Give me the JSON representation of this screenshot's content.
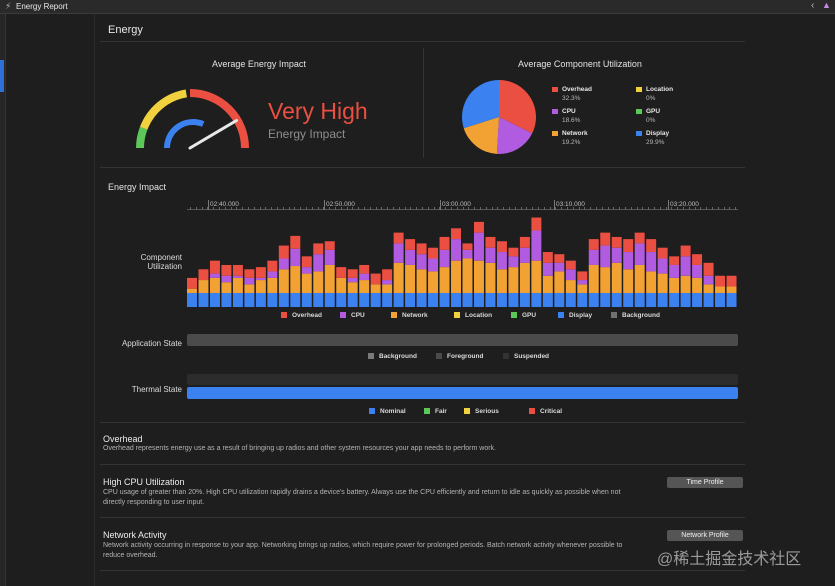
{
  "window": {
    "title": "Energy Report"
  },
  "header": {
    "title": "Energy"
  },
  "gauge": {
    "title": "Average Energy Impact",
    "level": "Very High",
    "subtitle": "Energy Impact",
    "needle_fraction": 0.83
  },
  "utilization": {
    "title": "Average Component Utilization",
    "items": [
      {
        "name": "Overhead",
        "pct": "32.3%",
        "value": 32.3,
        "color": "#ea4f41"
      },
      {
        "name": "Location",
        "pct": "0%",
        "value": 0,
        "color": "#f1d13d"
      },
      {
        "name": "CPU",
        "pct": "18.6%",
        "value": 18.6,
        "color": "#b05be0"
      },
      {
        "name": "GPU",
        "pct": "0%",
        "value": 0,
        "color": "#5cc857"
      },
      {
        "name": "Network",
        "pct": "19.2%",
        "value": 19.2,
        "color": "#f2a233"
      },
      {
        "name": "Display",
        "pct": "29.9%",
        "value": 29.9,
        "color": "#3b82f0"
      }
    ]
  },
  "impact": {
    "title": "Energy Impact",
    "row_label_line1": "Component",
    "row_label_line2": "Utilization",
    "ticks": [
      "02:40.000",
      "02:50.000",
      "03:00.000",
      "03:10.000",
      "03:20.000"
    ],
    "legend": [
      {
        "name": "Overhead",
        "color": "#ea4f41"
      },
      {
        "name": "CPU",
        "color": "#b05be0"
      },
      {
        "name": "Network",
        "color": "#f2a233"
      },
      {
        "name": "Location",
        "color": "#f1d13d"
      },
      {
        "name": "GPU",
        "color": "#5cc857"
      },
      {
        "name": "Display",
        "color": "#3b82f0"
      },
      {
        "name": "Background",
        "color": "#707070"
      }
    ]
  },
  "chart_data": {
    "type": "bar",
    "stacked": true,
    "title": "Energy Impact",
    "ylabel": "Component Utilization",
    "x_ticks": [
      "02:40.000",
      "02:50.000",
      "03:00.000",
      "03:10.000",
      "03:20.000"
    ],
    "ylim": [
      0,
      90
    ],
    "series": [
      {
        "name": "Display",
        "color": "#3b82f0",
        "values": [
          13,
          13,
          13,
          13,
          13,
          13,
          13,
          13,
          13,
          13,
          13,
          13,
          13,
          13,
          13,
          13,
          13,
          13,
          13,
          13,
          13,
          13,
          13,
          13,
          13,
          13,
          13,
          13,
          13,
          13,
          13,
          13,
          13,
          13,
          13,
          13,
          13,
          13,
          13,
          13,
          13,
          13,
          13,
          13,
          13,
          13,
          13,
          13
        ]
      },
      {
        "name": "Network",
        "color": "#f2a233",
        "values": [
          4,
          12,
          14,
          10,
          14,
          8,
          12,
          14,
          22,
          25,
          18,
          20,
          26,
          14,
          10,
          12,
          8,
          8,
          28,
          26,
          22,
          20,
          24,
          30,
          32,
          30,
          28,
          22,
          24,
          28,
          30,
          16,
          20,
          12,
          8,
          26,
          24,
          28,
          22,
          26,
          20,
          18,
          14,
          16,
          14,
          8,
          6,
          6
        ]
      },
      {
        "name": "CPU",
        "color": "#b05be0",
        "values": [
          0,
          0,
          4,
          6,
          2,
          6,
          2,
          6,
          10,
          16,
          6,
          16,
          14,
          0,
          4,
          6,
          0,
          4,
          18,
          14,
          14,
          12,
          16,
          20,
          8,
          26,
          14,
          16,
          10,
          14,
          28,
          12,
          8,
          10,
          4,
          14,
          20,
          14,
          16,
          20,
          18,
          14,
          12,
          18,
          12,
          8,
          0,
          0
        ]
      },
      {
        "name": "Overhead",
        "color": "#ea4f41",
        "values": [
          10,
          10,
          12,
          10,
          10,
          8,
          10,
          10,
          12,
          12,
          10,
          10,
          8,
          10,
          8,
          8,
          10,
          10,
          10,
          10,
          10,
          10,
          12,
          10,
          6,
          10,
          10,
          10,
          8,
          10,
          12,
          10,
          8,
          8,
          8,
          10,
          12,
          10,
          12,
          10,
          12,
          10,
          8,
          10,
          10,
          12,
          10,
          10
        ]
      }
    ]
  },
  "app_state": {
    "label": "Application State",
    "legend": [
      {
        "name": "Background",
        "color": "#7a7a7a"
      },
      {
        "name": "Foreground",
        "color": "#4a4a4a"
      },
      {
        "name": "Suspended",
        "color": "#333333"
      }
    ]
  },
  "thermal": {
    "label": "Thermal State",
    "legend": [
      {
        "name": "Nominal",
        "color": "#3b82f0"
      },
      {
        "name": "Fair",
        "color": "#5cc857"
      },
      {
        "name": "Serious",
        "color": "#f1d13d"
      },
      {
        "name": "Critical",
        "color": "#ea4f41"
      }
    ]
  },
  "details": [
    {
      "title": "Overhead",
      "desc": "Overhead represents energy use as a result of bringing up radios and other system resources your app needs to perform work.",
      "button": ""
    },
    {
      "title": "High CPU Utilization",
      "desc": "CPU usage of greater than 20%. High CPU utilization rapidly drains a device's battery. Always use the CPU efficiently and return to idle as quickly as possible when not directly responding to user input.",
      "button": "Time Profile"
    },
    {
      "title": "Network Activity",
      "desc": "Network activity occurring in response to your app. Networking brings up radios, which require power for prolonged periods. Batch network activity whenever possible to reduce overhead.",
      "button": "Network Profile"
    }
  ],
  "watermark": "@稀土掘金技术社区"
}
